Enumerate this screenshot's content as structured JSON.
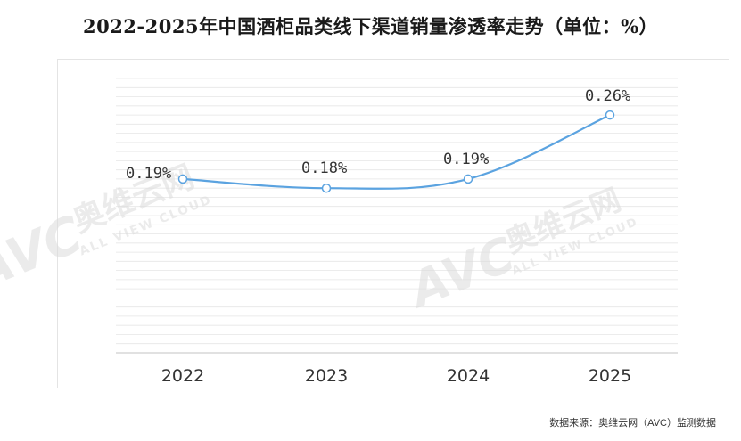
{
  "title": "2022-2025年中国酒柜品类线下渠道销量渗透率走势（单位：%）",
  "source": "数据来源：奥维云网（AVC）监测数据",
  "watermark": {
    "brand": "AVC",
    "cn": "奥维云网",
    "en": "ALL VIEW CLOUD"
  },
  "colors": {
    "line": "#5BA3E0",
    "grid": "#e6e6e6",
    "label": "#333333",
    "watermark": "#dcdcdc"
  },
  "chart_data": {
    "type": "line",
    "title": "2022-2025年中国酒柜品类线下渠道销量渗透率走势（单位：%）",
    "xlabel": "",
    "ylabel": "",
    "categories": [
      "2022",
      "2023",
      "2024",
      "2025"
    ],
    "series": [
      {
        "values": [
          0.19,
          0.18,
          0.19,
          0.26
        ],
        "labels": [
          "0.19%",
          "0.18%",
          "0.19%",
          "0.26%"
        ]
      }
    ],
    "ylim": [
      0,
      0.3
    ],
    "grid": true,
    "legend": "none",
    "smooth": true
  }
}
